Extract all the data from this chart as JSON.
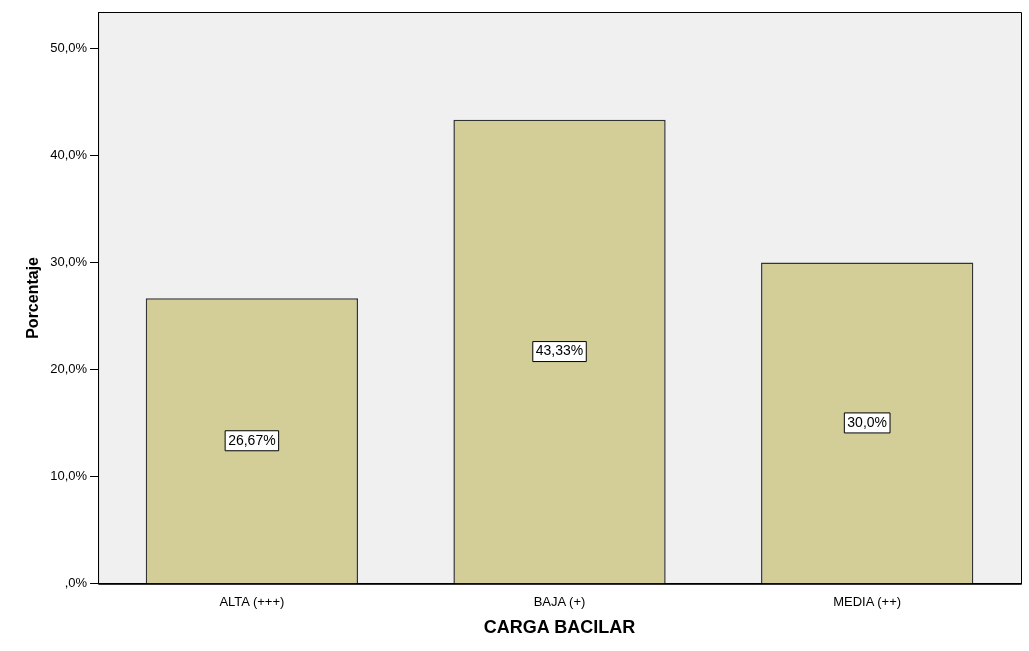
{
  "chart_data": {
    "type": "bar",
    "xlabel": "CARGA BACILAR",
    "ylabel": "Porcentaje",
    "categories": [
      "ALTA (+++)",
      "BAJA (+)",
      "MEDIA (++)"
    ],
    "values": [
      26.67,
      43.33,
      30.0
    ],
    "value_labels": [
      "26,67%",
      "43,33%",
      "30,0%"
    ],
    "color": "#d3ce97",
    "ylim": [
      0,
      53.4
    ],
    "yticks": [
      {
        "value": 0,
        "label": ",0%"
      },
      {
        "value": 10,
        "label": "10,0%"
      },
      {
        "value": 20,
        "label": "20,0%"
      },
      {
        "value": 30,
        "label": "30,0%"
      },
      {
        "value": 40,
        "label": "40,0%"
      },
      {
        "value": 50,
        "label": "50,0%"
      }
    ],
    "grid": false,
    "legend": false
  }
}
